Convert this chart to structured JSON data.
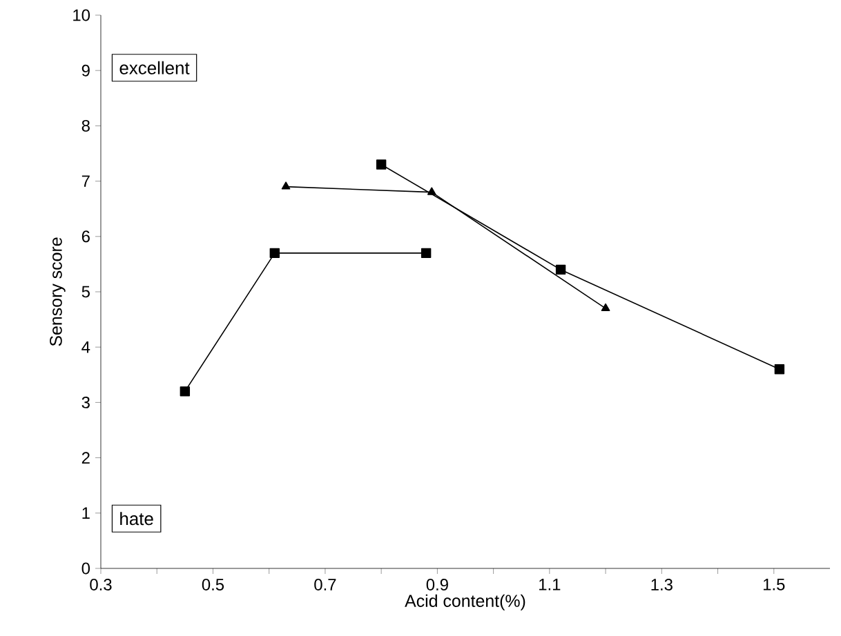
{
  "chart_data": {
    "type": "line",
    "xlabel": "Acid content(%)",
    "ylabel": "Sensory score",
    "xlim": [
      0.3,
      1.6
    ],
    "ylim": [
      0,
      10
    ],
    "xticks": [
      0.3,
      {
        "value": 0.4,
        "label": null
      },
      0.5,
      {
        "value": 0.6,
        "label": null
      },
      0.7,
      {
        "value": 0.8,
        "label": null
      },
      0.9,
      {
        "value": 1.0,
        "label": null
      },
      1.1,
      {
        "value": 1.2,
        "label": null
      },
      1.3,
      {
        "value": 1.4,
        "label": null
      },
      1.5
    ],
    "yticks": [
      0,
      1,
      2,
      3,
      4,
      5,
      6,
      7,
      8,
      9,
      10
    ],
    "grid": false,
    "line_style": "solid",
    "annotations": [
      "excellent",
      "hate"
    ],
    "series": [
      {
        "color": "#000000",
        "marker": "square",
        "x": [
          0.45,
          0.61,
          0.88
        ],
        "values": [
          3.2,
          5.7,
          5.7
        ]
      },
      {
        "color": "#000000",
        "marker": "triangle",
        "x": [
          0.63,
          0.89,
          1.2
        ],
        "values": [
          6.9,
          6.8,
          4.7
        ]
      },
      {
        "color": "#000000",
        "marker": "square",
        "x": [
          0.8,
          1.12,
          1.51
        ],
        "values": [
          7.3,
          5.4,
          3.6
        ]
      }
    ]
  }
}
